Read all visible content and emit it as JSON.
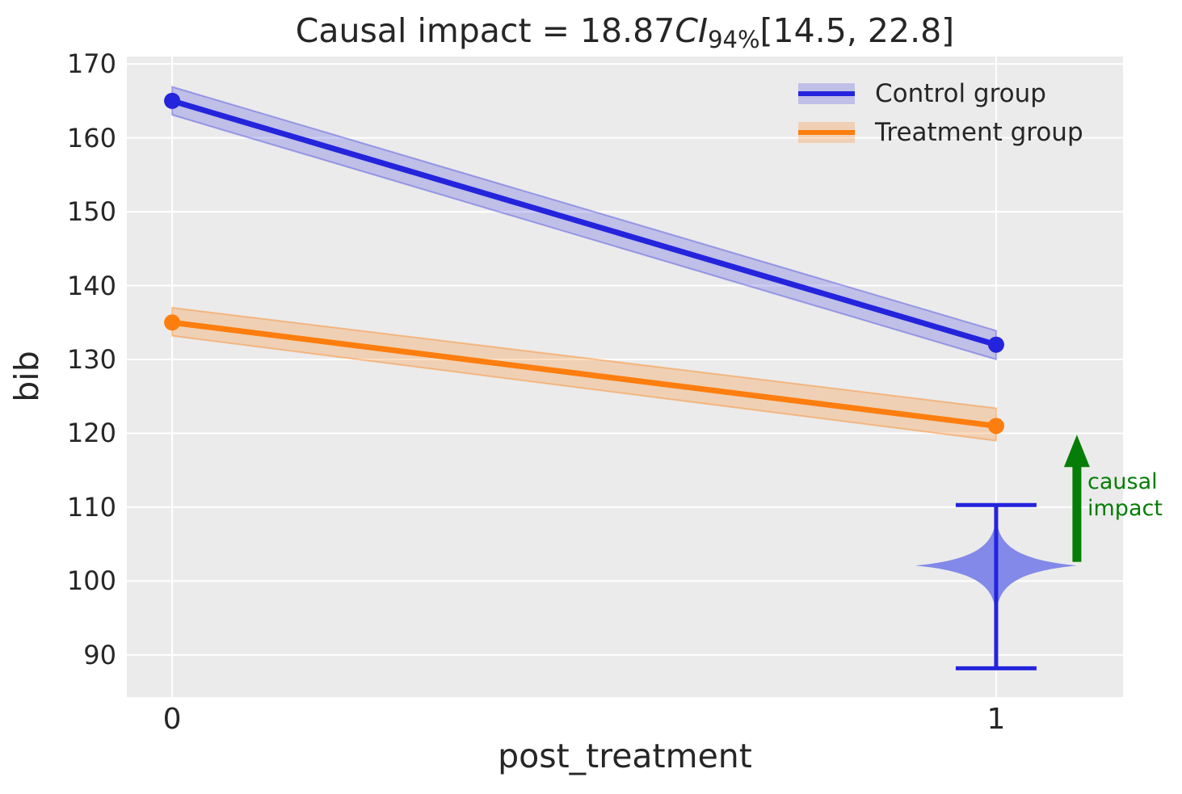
{
  "chart_data": {
    "type": "line",
    "title": {
      "prefix": "Causal impact = 18.87",
      "ci_text": "CI",
      "ci_subscript": "94%",
      "interval": "[14.5, 22.8]"
    },
    "causal_impact_value": 18.87,
    "ci_level": "94%",
    "ci_interval": [
      14.5,
      22.8
    ],
    "xlabel": "post_treatment",
    "ylabel": "bib",
    "x": [
      0,
      1
    ],
    "xticks": [
      "0",
      "1"
    ],
    "xtick_values": [
      0,
      1
    ],
    "yticks": [
      "90",
      "100",
      "110",
      "120",
      "130",
      "140",
      "150",
      "160",
      "170"
    ],
    "ytick_values": [
      90,
      100,
      110,
      120,
      130,
      140,
      150,
      160,
      170
    ],
    "xlim": [
      -0.055,
      1.154
    ],
    "ylim": [
      84.3,
      171.0
    ],
    "grid": true,
    "legend_position": "upper right",
    "series": [
      {
        "name": "Control group",
        "color": "#2424dd",
        "band_color": "rgba(36,36,221,0.22)",
        "band_edge_color": "rgba(36,36,221,0.35)",
        "values": [
          165,
          132
        ],
        "band_upper": [
          166.9,
          133.9
        ],
        "band_lower": [
          163.1,
          130.0
        ]
      },
      {
        "name": "Treatment group",
        "color": "#fd7e0e",
        "band_color": "rgba(253,126,14,0.25)",
        "band_edge_color": "rgba(253,126,14,0.4)",
        "values": [
          135,
          121
        ],
        "band_upper": [
          137.0,
          123.4
        ],
        "band_lower": [
          133.2,
          119.0
        ]
      }
    ],
    "counterfactual_violin": {
      "x": 1,
      "center": 102.1,
      "whisker_high": 110.3,
      "whisker_low": 88.2,
      "max_halfwidth_x": 0.098,
      "fill_color": "#8289e8",
      "line_color": "#2424dd"
    },
    "impact_arrow": {
      "x": 1.098,
      "y_from": 102.6,
      "y_to": 119.8,
      "color": "#067d06",
      "label": "causal impact"
    },
    "plot_bg": "#ebebeb",
    "grid_color": "#ffffff",
    "text_color": "#262626"
  }
}
